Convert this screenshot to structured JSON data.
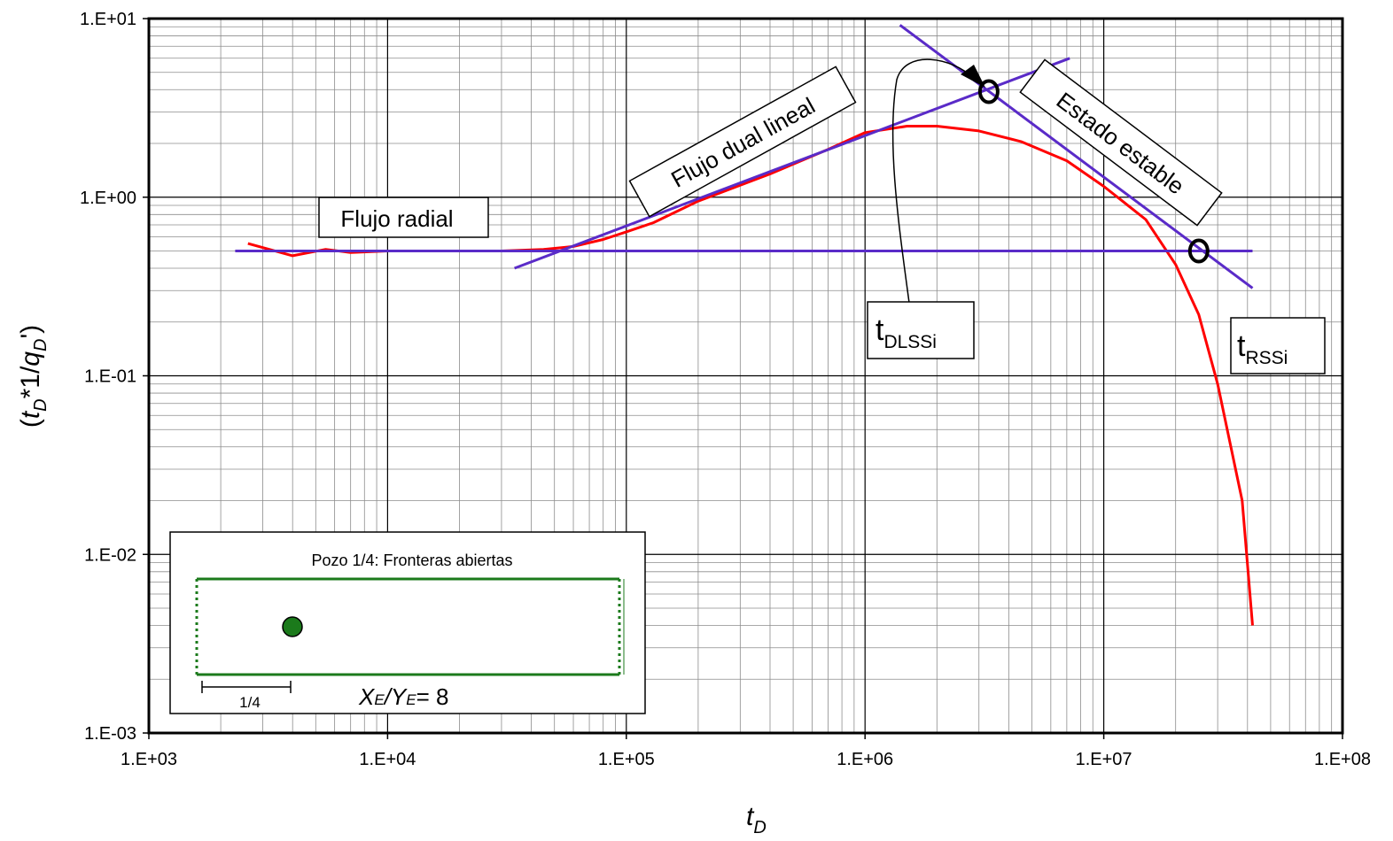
{
  "chart_data": {
    "type": "line",
    "xscale": "log",
    "yscale": "log",
    "xlim": [
      1000,
      100000000
    ],
    "ylim": [
      0.001,
      10
    ],
    "x_ticks": [
      {
        "v": 1000,
        "label": "1.E+03"
      },
      {
        "v": 10000,
        "label": "1.E+04"
      },
      {
        "v": 100000,
        "label": "1.E+05"
      },
      {
        "v": 1000000,
        "label": "1.E+06"
      },
      {
        "v": 10000000,
        "label": "1.E+07"
      },
      {
        "v": 100000000,
        "label": "1.E+08"
      }
    ],
    "y_ticks": [
      {
        "v": 0.001,
        "label": "1.E-03"
      },
      {
        "v": 0.01,
        "label": "1.E-02"
      },
      {
        "v": 0.1,
        "label": "1.E-01"
      },
      {
        "v": 1,
        "label": "1.E+00"
      },
      {
        "v": 10,
        "label": "1.E+01"
      }
    ],
    "grid": true,
    "xlabel": {
      "main": "t",
      "sub": "D"
    },
    "ylabel": {
      "open": "(",
      "t": "t",
      "tsub": "D",
      "mid": "*1/",
      "q": "q",
      "qsub": "D",
      "close": "')"
    },
    "series": [
      {
        "color": "#ff0000",
        "x": [
          2600,
          4000,
          5500,
          7000,
          10000,
          30000,
          45000,
          60000,
          80000,
          100000,
          130000,
          200000,
          400000,
          700000,
          1000000,
          1500000,
          2000000,
          3000000,
          4500000,
          7000000,
          10000000,
          15000000,
          20000000,
          25000000,
          30000000,
          38000000,
          42000000
        ],
        "y": [
          0.55,
          0.47,
          0.51,
          0.49,
          0.5,
          0.5,
          0.51,
          0.53,
          0.58,
          0.64,
          0.72,
          0.95,
          1.35,
          1.85,
          2.3,
          2.5,
          2.5,
          2.35,
          2.05,
          1.6,
          1.15,
          0.75,
          0.42,
          0.22,
          0.09,
          0.02,
          0.004
        ]
      },
      {
        "color": "#5a2bc8",
        "x": [
          2300,
          42000000
        ],
        "y": [
          0.5,
          0.5
        ]
      },
      {
        "color": "#5a2bc8",
        "x": [
          34000,
          7200000
        ],
        "y": [
          0.4,
          6.0
        ]
      },
      {
        "color": "#5a2bc8",
        "x": [
          1400000,
          42000000
        ],
        "y": [
          9.2,
          0.31
        ]
      }
    ],
    "markers": [
      {
        "x": 3300000,
        "y": 3.9
      },
      {
        "x": 25000000,
        "y": 0.5
      }
    ],
    "annotations": {
      "radial": "Flujo radial",
      "dual": "Flujo dual lineal",
      "estable": "Estado estable",
      "dlssi": {
        "t": "t",
        "sub": "DLSSi"
      },
      "rssi": {
        "t": "t",
        "sub": "RSSi"
      }
    },
    "inset": {
      "title": "Pozo 1/4: Fronteras abiertas",
      "scale_label": "1/4",
      "ratio": {
        "xe": "X",
        "xsub": "E",
        "slash": "/",
        "ye": "Y",
        "ysub": "E",
        "eq": "= 8"
      },
      "border_color": "#1b7a1b",
      "well_color": "#1b7a1b"
    }
  }
}
